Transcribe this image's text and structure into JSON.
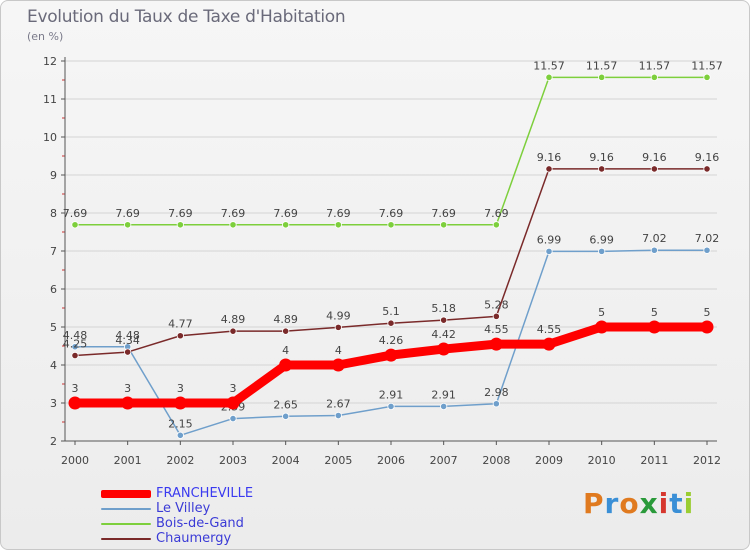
{
  "title": "Evolution du Taux de Taxe d'Habitation",
  "subtitle": "(en %)",
  "logo_text": "Proxiti",
  "logo_colors": [
    "#e07a1f",
    "#3a8fd6",
    "#e07a1f",
    "#2a9a3a",
    "#d6372e",
    "#3a8fd6",
    "#9acd32"
  ],
  "chart_data": {
    "type": "line",
    "title": "Evolution du Taux de Taxe d'Habitation",
    "ylabel": "(en %)",
    "xlabel": "",
    "x": [
      "2000",
      "2001",
      "2002",
      "2003",
      "2004",
      "2005",
      "2006",
      "2007",
      "2008",
      "2009",
      "2010",
      "2011",
      "2012"
    ],
    "ylim": [
      2,
      12
    ],
    "yticks": [
      "2",
      "3",
      "4",
      "5",
      "6",
      "7",
      "8",
      "9",
      "10",
      "11",
      "12"
    ],
    "grid": true,
    "legend_position": "bottom-left",
    "series": [
      {
        "name": "FRANCHEVILLE",
        "color": "#ff0000",
        "values": [
          3,
          3,
          3,
          3,
          4,
          4,
          4.26,
          4.42,
          4.55,
          4.55,
          5,
          5,
          5
        ],
        "labels": [
          "3",
          "3",
          "3",
          "3",
          "4",
          "4",
          "4.26",
          "4.42",
          "4.55",
          "4.55",
          "5",
          "5",
          "5"
        ]
      },
      {
        "name": "Le Villey",
        "color": "#6f9fcb",
        "values": [
          4.48,
          4.48,
          2.15,
          2.59,
          2.65,
          2.67,
          2.91,
          2.91,
          2.98,
          6.99,
          6.99,
          7.02,
          7.02
        ],
        "labels": [
          "4.48",
          "4.48",
          "2.15",
          "2.59",
          "2.65",
          "2.67",
          "2.91",
          "2.91",
          "2.98",
          "6.99",
          "6.99",
          "7.02",
          "7.02"
        ]
      },
      {
        "name": "Bois-de-Gand",
        "color": "#7dcf3c",
        "values": [
          7.69,
          7.69,
          7.69,
          7.69,
          7.69,
          7.69,
          7.69,
          7.69,
          7.69,
          11.57,
          11.57,
          11.57,
          11.57
        ],
        "labels": [
          "7.69",
          "7.69",
          "7.69",
          "7.69",
          "7.69",
          "7.69",
          "7.69",
          "7.69",
          "7.69",
          "11.57",
          "11.57",
          "11.57",
          "11.57"
        ]
      },
      {
        "name": "Chaumergy",
        "color": "#7a2a2a",
        "values": [
          4.25,
          4.34,
          4.77,
          4.89,
          4.89,
          4.99,
          5.1,
          5.18,
          5.28,
          9.16,
          9.16,
          9.16,
          9.16
        ],
        "labels": [
          "4.25",
          "4.34",
          "4.77",
          "4.89",
          "4.89",
          "4.99",
          "5.1",
          "5.18",
          "5.28",
          "9.16",
          "9.16",
          "9.16",
          "9.16"
        ]
      }
    ]
  }
}
